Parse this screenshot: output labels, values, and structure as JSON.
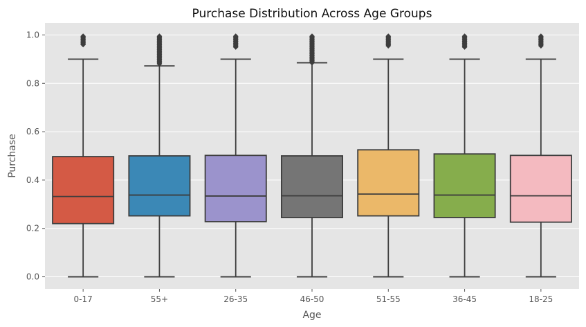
{
  "chart_data": {
    "type": "box",
    "title": "Purchase Distribution Across Age Groups",
    "xlabel": "Age",
    "ylabel": "Purchase",
    "ylim": [
      -0.05,
      1.05
    ],
    "yticks": [
      0.0,
      0.2,
      0.4,
      0.6,
      0.8,
      1.0
    ],
    "ytick_labels": [
      "0.0",
      "0.2",
      "0.4",
      "0.6",
      "0.8",
      "1.0"
    ],
    "grid": true,
    "background": "#e5e5e5",
    "gridline_color": "#ffffff",
    "box_edge_color": "#3d3d3d",
    "categories": [
      "0-17",
      "55+",
      "26-35",
      "46-50",
      "51-55",
      "36-45",
      "18-25"
    ],
    "boxes": [
      {
        "category": "0-17",
        "color": "#d45a45",
        "whisker_low": 0.0,
        "q1": 0.22,
        "median": 0.332,
        "q3": 0.497,
        "whisker_high": 0.9,
        "outliers_range": [
          0.96,
          0.995
        ]
      },
      {
        "category": "55+",
        "color": "#3b88b6",
        "whisker_low": 0.0,
        "q1": 0.252,
        "median": 0.338,
        "q3": 0.5,
        "whisker_high": 0.872,
        "outliers_range": [
          0.88,
          0.995
        ]
      },
      {
        "category": "26-35",
        "color": "#9b93cc",
        "whisker_low": 0.0,
        "q1": 0.228,
        "median": 0.334,
        "q3": 0.502,
        "whisker_high": 0.9,
        "outliers_range": [
          0.95,
          0.995
        ]
      },
      {
        "category": "46-50",
        "color": "#757575",
        "whisker_low": 0.0,
        "q1": 0.245,
        "median": 0.335,
        "q3": 0.5,
        "whisker_high": 0.885,
        "outliers_range": [
          0.885,
          0.995
        ]
      },
      {
        "category": "51-55",
        "color": "#ebb869",
        "whisker_low": 0.0,
        "q1": 0.252,
        "median": 0.342,
        "q3": 0.525,
        "whisker_high": 0.9,
        "outliers_range": [
          0.955,
          0.995
        ]
      },
      {
        "category": "36-45",
        "color": "#86ad4c",
        "whisker_low": 0.0,
        "q1": 0.245,
        "median": 0.338,
        "q3": 0.508,
        "whisker_high": 0.9,
        "outliers_range": [
          0.95,
          0.995
        ]
      },
      {
        "category": "18-25",
        "color": "#f4bac0",
        "whisker_low": 0.0,
        "q1": 0.226,
        "median": 0.335,
        "q3": 0.502,
        "whisker_high": 0.9,
        "outliers_range": [
          0.955,
          0.995
        ]
      }
    ]
  }
}
